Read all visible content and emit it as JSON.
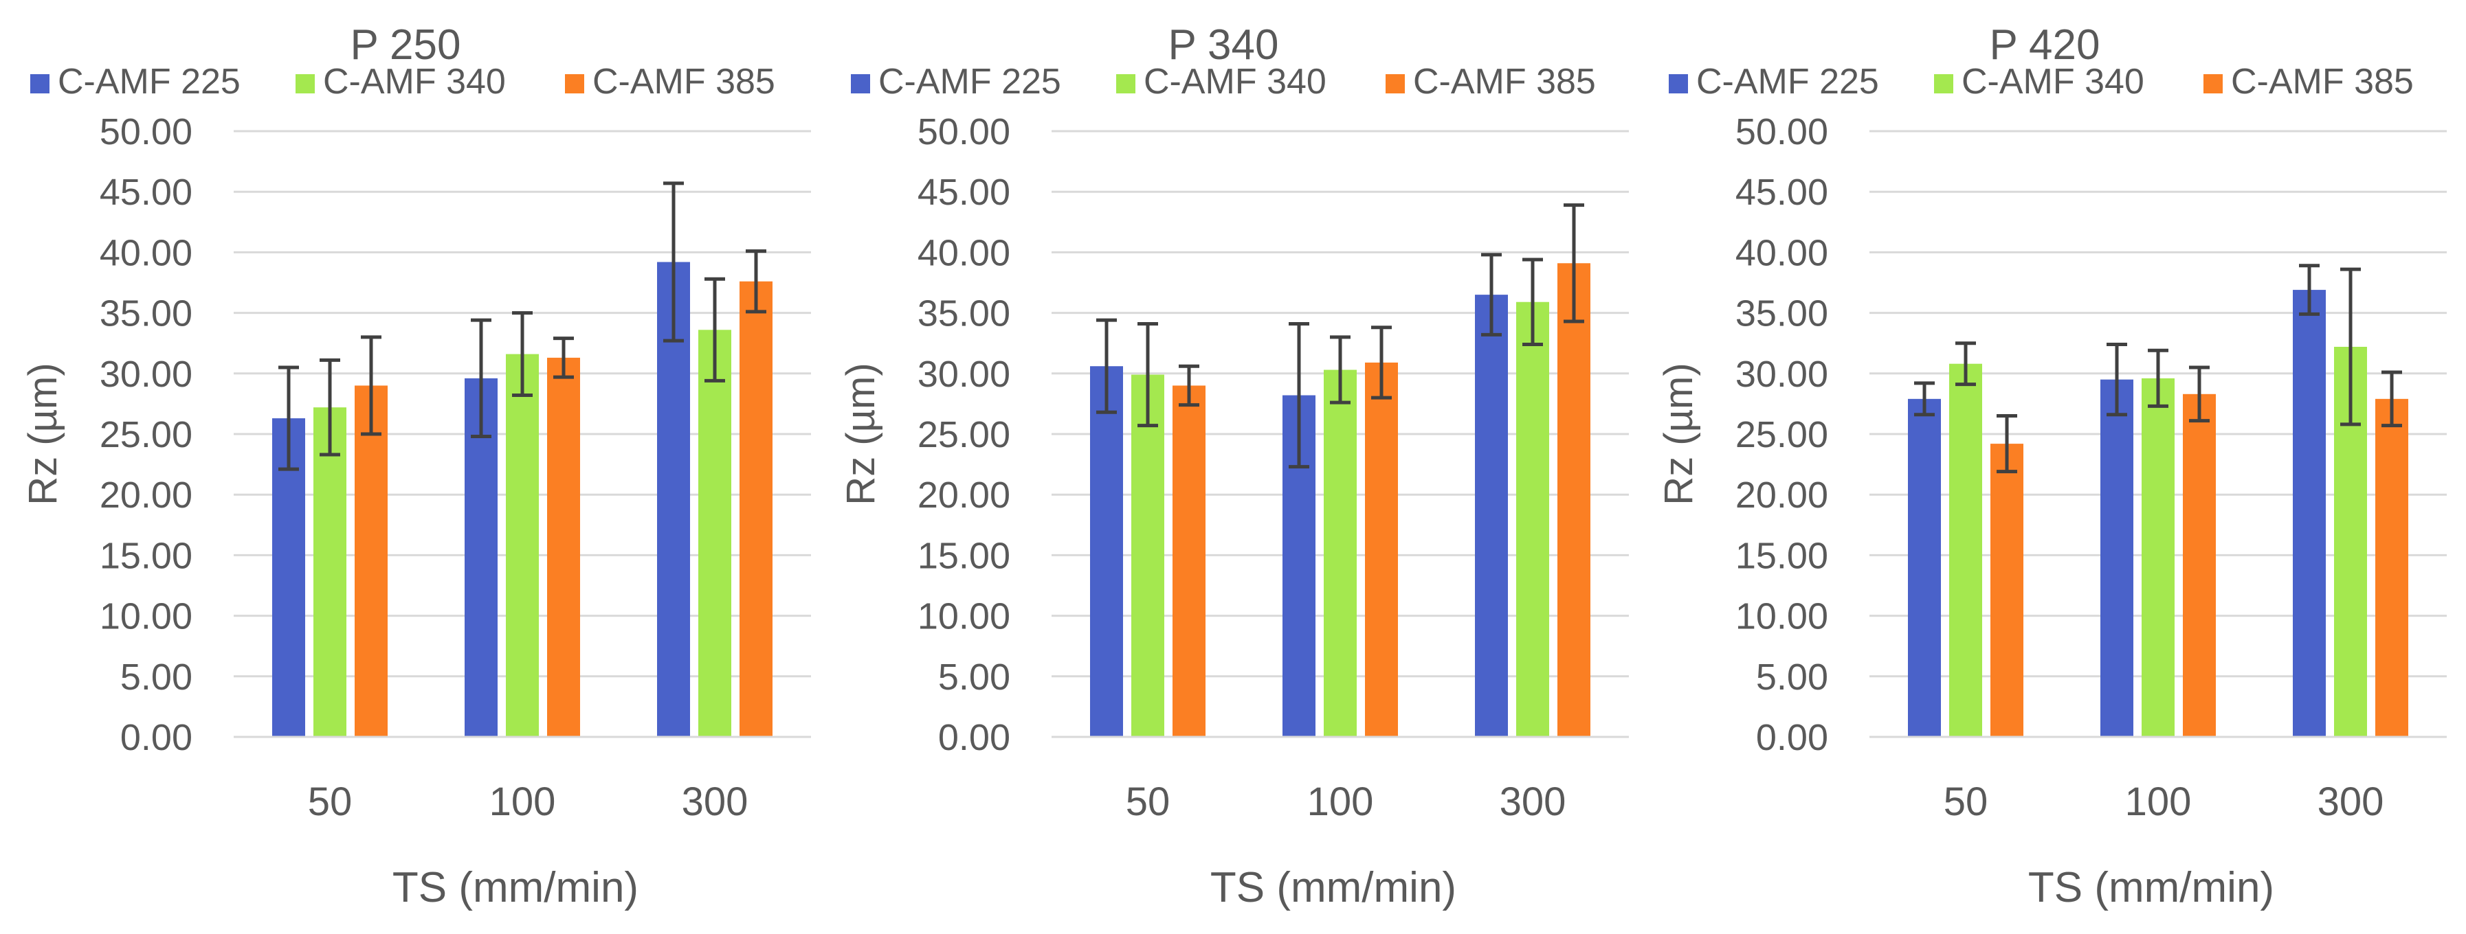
{
  "chart_data": [
    {
      "type": "bar",
      "title": "P 250",
      "xlabel": "TS (mm/min)",
      "ylabel": "Rz (µm)",
      "ylim": [
        0,
        50
      ],
      "yticks": [
        "0.00",
        "5.00",
        "10.00",
        "15.00",
        "20.00",
        "25.00",
        "30.00",
        "35.00",
        "40.00",
        "45.00",
        "50.00"
      ],
      "grid": true,
      "legend": "top",
      "categories": [
        "50",
        "100",
        "300"
      ],
      "series": [
        {
          "name": "C-AMF 225",
          "color": "#4a62c9",
          "values": [
            26.3,
            29.6,
            39.2
          ],
          "errors": [
            4.2,
            4.8,
            6.5
          ]
        },
        {
          "name": "C-AMF 340",
          "color": "#a4e84f",
          "values": [
            27.2,
            31.6,
            33.6
          ],
          "errors": [
            3.9,
            3.4,
            4.2
          ]
        },
        {
          "name": "C-AMF 385",
          "color": "#fb7f23",
          "values": [
            29.0,
            31.3,
            37.6
          ],
          "errors": [
            4.0,
            1.6,
            2.5
          ]
        }
      ]
    },
    {
      "type": "bar",
      "title": "P 340",
      "xlabel": "TS (mm/min)",
      "ylabel": "Rz (µm)",
      "ylim": [
        0,
        50
      ],
      "yticks": [
        "0.00",
        "5.00",
        "10.00",
        "15.00",
        "20.00",
        "25.00",
        "30.00",
        "35.00",
        "40.00",
        "45.00",
        "50.00"
      ],
      "grid": true,
      "legend": "top",
      "categories": [
        "50",
        "100",
        "300"
      ],
      "series": [
        {
          "name": "C-AMF 225",
          "color": "#4a62c9",
          "values": [
            30.6,
            28.2,
            36.5
          ],
          "errors": [
            3.8,
            5.9,
            3.3
          ]
        },
        {
          "name": "C-AMF 340",
          "color": "#a4e84f",
          "values": [
            29.9,
            30.3,
            35.9
          ],
          "errors": [
            4.2,
            2.7,
            3.5
          ]
        },
        {
          "name": "C-AMF 385",
          "color": "#fb7f23",
          "values": [
            29.0,
            30.9,
            39.1
          ],
          "errors": [
            1.6,
            2.9,
            4.8
          ]
        }
      ]
    },
    {
      "type": "bar",
      "title": "P 420",
      "xlabel": "TS (mm/min)",
      "ylabel": "Rz (µm)",
      "ylim": [
        0,
        50
      ],
      "yticks": [
        "0.00",
        "5.00",
        "10.00",
        "15.00",
        "20.00",
        "25.00",
        "30.00",
        "35.00",
        "40.00",
        "45.00",
        "50.00"
      ],
      "grid": true,
      "legend": "top",
      "categories": [
        "50",
        "100",
        "300"
      ],
      "series": [
        {
          "name": "C-AMF 225",
          "color": "#4a62c9",
          "values": [
            27.9,
            29.5,
            36.9
          ],
          "errors": [
            1.3,
            2.9,
            2.0
          ]
        },
        {
          "name": "C-AMF 340",
          "color": "#a4e84f",
          "values": [
            30.8,
            29.6,
            32.2
          ],
          "errors": [
            1.7,
            2.3,
            6.4
          ]
        },
        {
          "name": "C-AMF 385",
          "color": "#fb7f23",
          "values": [
            24.2,
            28.3,
            27.9
          ],
          "errors": [
            2.3,
            2.2,
            2.2
          ]
        }
      ]
    }
  ]
}
